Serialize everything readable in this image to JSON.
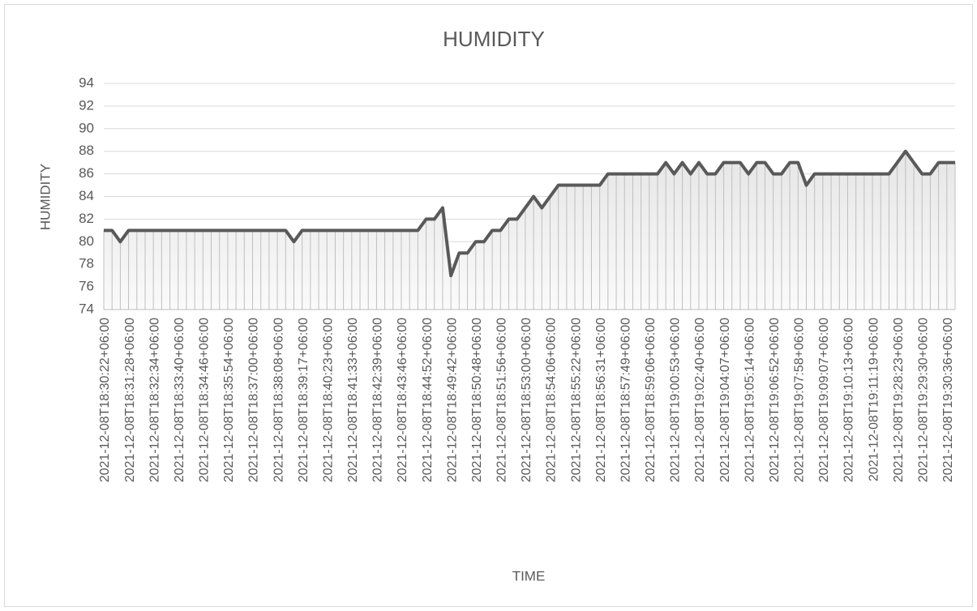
{
  "chart_data": {
    "type": "line",
    "title": "HUMIDITY",
    "x_label": "TIME",
    "y_label": "HUMIDITY",
    "categories": [
      "2021-12-08T18:30:22+06:00",
      null,
      null,
      "2021-12-08T18:31:28+06:00",
      null,
      null,
      "2021-12-08T18:32:34+06:00",
      null,
      null,
      "2021-12-08T18:33:40+06:00",
      null,
      null,
      "2021-12-08T18:34:46+06:00",
      null,
      null,
      "2021-12-08T18:35:54+06:00",
      null,
      null,
      "2021-12-08T18:37:00+06:00",
      null,
      null,
      "2021-12-08T18:38:08+06:00",
      null,
      null,
      "2021-12-08T18:39:17+06:00",
      null,
      null,
      "2021-12-08T18:40:23+06:00",
      null,
      null,
      "2021-12-08T18:41:33+06:00",
      null,
      null,
      "2021-12-08T18:42:39+06:00",
      null,
      null,
      "2021-12-08T18:43:46+06:00",
      null,
      null,
      "2021-12-08T18:44:52+06:00",
      null,
      null,
      "2021-12-08T18:49:42+06:00",
      null,
      null,
      "2021-12-08T18:50:48+06:00",
      null,
      null,
      "2021-12-08T18:51:56+06:00",
      null,
      null,
      "2021-12-08T18:53:00+06:00",
      null,
      null,
      "2021-12-08T18:54:06+06:00",
      null,
      null,
      "2021-12-08T18:55:22+06:00",
      null,
      null,
      "2021-12-08T18:56:31+06:00",
      null,
      null,
      "2021-12-08T18:57:49+06:00",
      null,
      null,
      "2021-12-08T18:59:06+06:00",
      null,
      null,
      "2021-12-08T19:00:53+06:00",
      null,
      null,
      "2021-12-08T19:02:40+06:00",
      null,
      null,
      "2021-12-08T19:04:07+06:00",
      null,
      null,
      "2021-12-08T19:05:14+06:00",
      null,
      null,
      "2021-12-08T19:06:52+06:00",
      null,
      null,
      "2021-12-08T19:07:58+06:00",
      null,
      null,
      "2021-12-08T19:09:07+06:00",
      null,
      null,
      "2021-12-08T19:10:13+06:00",
      null,
      null,
      "2021-12-08T19:11:19+06:00",
      null,
      null,
      "2021-12-08T19:28:23+06:00",
      null,
      null,
      "2021-12-08T19:29:30+06:00",
      null,
      null,
      "2021-12-08T19:30:36+06:00",
      null
    ],
    "values": [
      81,
      81,
      80,
      81,
      81,
      81,
      81,
      81,
      81,
      81,
      81,
      81,
      81,
      81,
      81,
      81,
      81,
      81,
      81,
      81,
      81,
      81,
      81,
      80,
      81,
      81,
      81,
      81,
      81,
      81,
      81,
      81,
      81,
      81,
      81,
      81,
      81,
      81,
      81,
      82,
      82,
      83,
      77,
      79,
      79,
      80,
      80,
      81,
      81,
      82,
      82,
      83,
      84,
      83,
      84,
      85,
      85,
      85,
      85,
      85,
      85,
      86,
      86,
      86,
      86,
      86,
      86,
      86,
      87,
      86,
      87,
      86,
      87,
      86,
      86,
      87,
      87,
      87,
      86,
      87,
      87,
      86,
      86,
      87,
      87,
      85,
      86,
      86,
      86,
      86,
      86,
      86,
      86,
      86,
      86,
      86,
      87,
      88,
      87,
      86,
      86,
      87,
      87,
      87
    ],
    "color": "#595959",
    "ylim": [
      74,
      94
    ],
    "yticks": [
      74,
      76,
      78,
      80,
      82,
      84,
      86,
      88,
      90,
      92,
      94
    ],
    "grid": true
  }
}
